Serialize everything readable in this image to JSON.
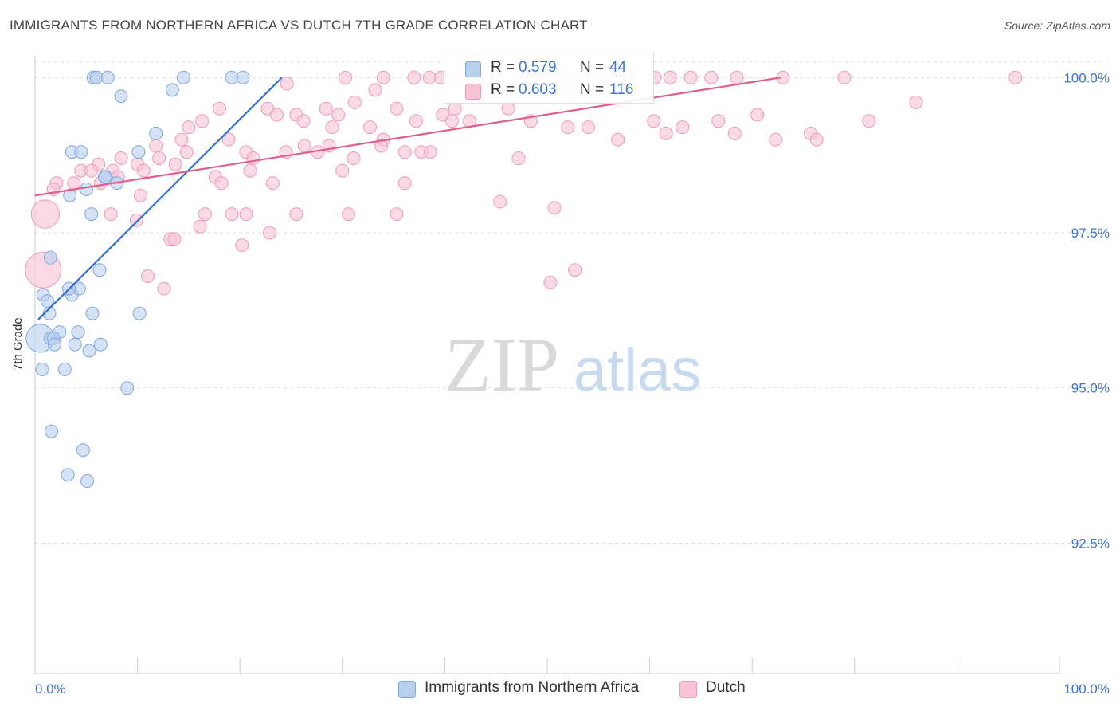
{
  "title": "IMMIGRANTS FROM NORTHERN AFRICA VS DUTCH 7TH GRADE CORRELATION CHART",
  "source": "Source: ZipAtlas.com",
  "watermark": {
    "zip": "ZIP",
    "atlas": "atlas"
  },
  "legend": {
    "r_label": "R =",
    "n_label": "N =",
    "series": [
      {
        "name": "Immigrants from Northern Africa",
        "r": "0.579",
        "n": "44"
      },
      {
        "name": "Dutch",
        "r": "0.603",
        "n": "116"
      }
    ]
  },
  "colors": {
    "blue_fill": "#b9cfee",
    "blue_stroke": "#7fa6dd",
    "blue_line": "#2f6fd1",
    "pink_fill": "#f7c3d3",
    "pink_stroke": "#ee9ab6",
    "pink_line": "#e35d8a",
    "axis_text": "#3f74c9",
    "grid": "#d9d9d9"
  },
  "chart_data": {
    "type": "scatter",
    "title": "IMMIGRANTS FROM NORTHERN AFRICA VS DUTCH 7TH GRADE CORRELATION CHART",
    "xlabel": "",
    "ylabel": "7th Grade",
    "xlim": [
      0,
      100
    ],
    "ylim": [
      90.4,
      100.35
    ],
    "x_tick_labels": [
      "0.0%",
      "100.0%"
    ],
    "y_ticks": [
      {
        "value": 100.0,
        "label": "100.0%"
      },
      {
        "value": 97.5,
        "label": "97.5%"
      },
      {
        "value": 95.0,
        "label": "95.0%"
      },
      {
        "value": 92.5,
        "label": "92.5%"
      }
    ],
    "series": [
      {
        "name": "Immigrants from Northern Africa",
        "color": "#b9cfee",
        "trendline": [
          [
            0.3,
            96.1
          ],
          [
            24.1,
            100.0
          ]
        ],
        "points": [
          [
            5.7,
            100.0,
            1
          ],
          [
            6.0,
            100.0,
            1
          ],
          [
            7.1,
            100.0,
            1
          ],
          [
            14.5,
            100.0,
            1
          ],
          [
            19.2,
            100.0,
            1
          ],
          [
            20.3,
            100.0,
            1
          ],
          [
            8.4,
            99.7,
            1
          ],
          [
            13.4,
            99.8,
            1
          ],
          [
            11.8,
            99.1,
            1
          ],
          [
            3.6,
            98.8,
            1
          ],
          [
            4.5,
            98.8,
            1
          ],
          [
            10.1,
            98.8,
            1
          ],
          [
            6.8,
            98.4,
            1
          ],
          [
            8.0,
            98.3,
            1
          ],
          [
            3.4,
            98.1,
            1
          ],
          [
            5.5,
            97.8,
            1
          ],
          [
            1.5,
            97.1,
            1
          ],
          [
            6.3,
            96.9,
            1
          ],
          [
            0.8,
            96.5,
            1
          ],
          [
            3.6,
            96.5,
            1
          ],
          [
            4.3,
            96.6,
            1
          ],
          [
            1.2,
            96.4,
            1
          ],
          [
            1.4,
            96.2,
            1
          ],
          [
            5.6,
            96.2,
            1
          ],
          [
            10.2,
            96.2,
            1
          ],
          [
            2.4,
            95.9,
            1
          ],
          [
            4.2,
            95.9,
            1
          ],
          [
            0.5,
            95.8,
            3
          ],
          [
            1.5,
            95.8,
            1
          ],
          [
            1.8,
            95.8,
            1
          ],
          [
            1.9,
            95.7,
            1
          ],
          [
            3.9,
            95.7,
            1
          ],
          [
            6.4,
            95.7,
            1
          ],
          [
            5.3,
            95.6,
            1
          ],
          [
            0.7,
            95.3,
            1
          ],
          [
            2.9,
            95.3,
            1
          ],
          [
            9.0,
            95.0,
            1
          ],
          [
            1.6,
            94.3,
            1
          ],
          [
            4.7,
            94.0,
            1
          ],
          [
            3.2,
            93.6,
            1
          ],
          [
            5.1,
            93.5,
            1
          ],
          [
            5.0,
            98.2,
            1
          ],
          [
            3.3,
            96.6,
            1
          ],
          [
            6.9,
            98.4,
            1
          ]
        ]
      },
      {
        "name": "Dutch",
        "color": "#f7c3d3",
        "trendline": [
          [
            0.0,
            98.1
          ],
          [
            72.8,
            100.0
          ]
        ],
        "points": [
          [
            24.6,
            99.9,
            1
          ],
          [
            30.3,
            100.0,
            1
          ],
          [
            34.0,
            100.0,
            1
          ],
          [
            37.0,
            100.0,
            1
          ],
          [
            38.5,
            100.0,
            1
          ],
          [
            39.6,
            100.0,
            1
          ],
          [
            41.2,
            100.0,
            1
          ],
          [
            44.0,
            100.0,
            1
          ],
          [
            48.5,
            100.0,
            1
          ],
          [
            52.0,
            100.0,
            1
          ],
          [
            55.0,
            100.0,
            1
          ],
          [
            58.0,
            100.0,
            1
          ],
          [
            60.5,
            100.0,
            1
          ],
          [
            62.0,
            100.0,
            1
          ],
          [
            64.0,
            100.0,
            1
          ],
          [
            66.0,
            100.0,
            1
          ],
          [
            68.5,
            100.0,
            1
          ],
          [
            73.0,
            100.0,
            1
          ],
          [
            79.0,
            100.0,
            1
          ],
          [
            95.7,
            100.0,
            1
          ],
          [
            33.2,
            99.8,
            1
          ],
          [
            43.5,
            99.7,
            1
          ],
          [
            45.0,
            99.7,
            1
          ],
          [
            31.2,
            99.6,
            1
          ],
          [
            35.3,
            99.5,
            1
          ],
          [
            28.4,
            99.5,
            1
          ],
          [
            41.0,
            99.5,
            1
          ],
          [
            46.2,
            99.5,
            1
          ],
          [
            18.0,
            99.5,
            1
          ],
          [
            22.7,
            99.5,
            1
          ],
          [
            23.6,
            99.4,
            1
          ],
          [
            25.5,
            99.4,
            1
          ],
          [
            26.2,
            99.3,
            1
          ],
          [
            29.0,
            99.2,
            1
          ],
          [
            29.6,
            99.4,
            1
          ],
          [
            32.7,
            99.2,
            1
          ],
          [
            39.8,
            99.4,
            1
          ],
          [
            40.7,
            99.3,
            1
          ],
          [
            37.2,
            99.3,
            1
          ],
          [
            42.4,
            99.3,
            1
          ],
          [
            48.4,
            99.3,
            1
          ],
          [
            52.0,
            99.2,
            1
          ],
          [
            54.0,
            99.2,
            1
          ],
          [
            56.9,
            99.0,
            1
          ],
          [
            60.4,
            99.3,
            1
          ],
          [
            61.6,
            99.1,
            1
          ],
          [
            63.2,
            99.2,
            1
          ],
          [
            66.7,
            99.3,
            1
          ],
          [
            68.3,
            99.1,
            1
          ],
          [
            70.5,
            99.4,
            1
          ],
          [
            72.3,
            99.0,
            1
          ],
          [
            75.7,
            99.1,
            1
          ],
          [
            76.3,
            99.0,
            1
          ],
          [
            81.4,
            99.3,
            1
          ],
          [
            86.0,
            99.6,
            1
          ],
          [
            15.0,
            99.2,
            1
          ],
          [
            16.3,
            99.3,
            1
          ],
          [
            14.3,
            99.0,
            1
          ],
          [
            18.9,
            99.0,
            1
          ],
          [
            20.6,
            98.8,
            1
          ],
          [
            21.3,
            98.7,
            1
          ],
          [
            24.5,
            98.8,
            1
          ],
          [
            26.3,
            98.9,
            1
          ],
          [
            27.6,
            98.8,
            1
          ],
          [
            28.7,
            98.9,
            1
          ],
          [
            34.0,
            99.0,
            1
          ],
          [
            33.8,
            98.9,
            1
          ],
          [
            36.1,
            98.8,
            1
          ],
          [
            37.7,
            98.8,
            1
          ],
          [
            38.6,
            98.8,
            1
          ],
          [
            47.2,
            98.7,
            1
          ],
          [
            30.0,
            98.5,
            1
          ],
          [
            31.1,
            98.7,
            1
          ],
          [
            14.8,
            98.8,
            1
          ],
          [
            11.8,
            98.9,
            1
          ],
          [
            13.7,
            98.6,
            1
          ],
          [
            12.1,
            98.7,
            1
          ],
          [
            10.0,
            98.6,
            1
          ],
          [
            8.4,
            98.7,
            1
          ],
          [
            7.6,
            98.5,
            1
          ],
          [
            6.2,
            98.6,
            1
          ],
          [
            4.5,
            98.5,
            1
          ],
          [
            3.8,
            98.3,
            1
          ],
          [
            2.1,
            98.3,
            1
          ],
          [
            1.8,
            98.2,
            1
          ],
          [
            5.5,
            98.5,
            1
          ],
          [
            6.4,
            98.3,
            1
          ],
          [
            8.1,
            98.4,
            1
          ],
          [
            10.6,
            98.5,
            1
          ],
          [
            17.6,
            98.4,
            1
          ],
          [
            18.2,
            98.3,
            1
          ],
          [
            21.0,
            98.5,
            1
          ],
          [
            23.2,
            98.3,
            1
          ],
          [
            36.1,
            98.3,
            1
          ],
          [
            10.3,
            98.1,
            1
          ],
          [
            25.5,
            97.8,
            1
          ],
          [
            9.9,
            97.7,
            1
          ],
          [
            7.4,
            97.8,
            1
          ],
          [
            16.6,
            97.8,
            1
          ],
          [
            19.2,
            97.8,
            1
          ],
          [
            20.6,
            97.8,
            1
          ],
          [
            30.6,
            97.8,
            1
          ],
          [
            35.3,
            97.8,
            1
          ],
          [
            45.4,
            98.0,
            1
          ],
          [
            50.7,
            97.9,
            1
          ],
          [
            13.2,
            97.4,
            1
          ],
          [
            13.6,
            97.4,
            1
          ],
          [
            16.1,
            97.6,
            1
          ],
          [
            22.9,
            97.5,
            1
          ],
          [
            20.2,
            97.3,
            1
          ],
          [
            11.0,
            96.8,
            1
          ],
          [
            12.6,
            96.6,
            1
          ],
          [
            50.3,
            96.7,
            1
          ],
          [
            52.7,
            96.9,
            1
          ],
          [
            1.0,
            97.8,
            3
          ],
          [
            0.8,
            96.9,
            4
          ]
        ]
      }
    ]
  }
}
